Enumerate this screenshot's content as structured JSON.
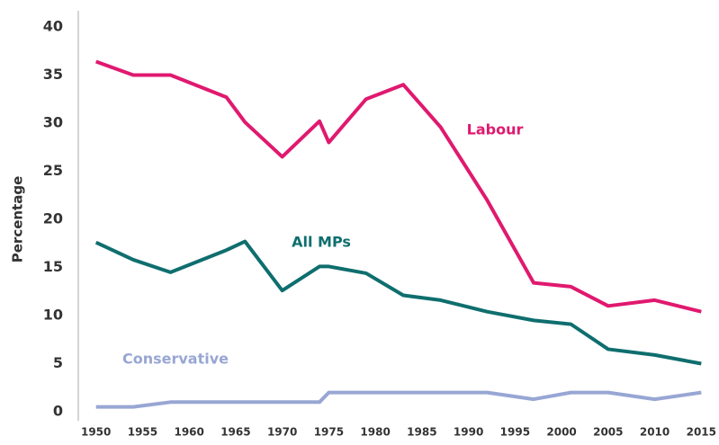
{
  "chart_data": {
    "type": "line",
    "y_label": "Percentage",
    "x": [
      1950,
      1954,
      1958,
      1964,
      1966,
      1970,
      1974,
      1975,
      1979,
      1983,
      1987,
      1992,
      1997,
      2001,
      2005,
      2010,
      2015
    ],
    "series": [
      {
        "name": "Labour",
        "color": "#e0196f",
        "values": [
          36.4,
          35,
          35,
          32.7,
          30.1,
          26.5,
          30.2,
          28.0,
          32.5,
          34.0,
          29.6,
          22.0,
          13.4,
          13.0,
          11.0,
          11.6,
          10.4
        ]
      },
      {
        "name": "All MPs",
        "color": "#0f6e6e",
        "values": [
          17.6,
          15.8,
          14.5,
          16.8,
          17.7,
          12.6,
          15.1,
          15.1,
          14.4,
          12.1,
          11.6,
          10.4,
          9.5,
          9.1,
          6.5,
          5.9,
          5.0
        ]
      },
      {
        "name": "Conservative",
        "color": "#98a6d4",
        "values": [
          0.5,
          0.5,
          1.0,
          1.0,
          1.0,
          1.0,
          1.0,
          2.0,
          2.0,
          2.0,
          2.0,
          2.0,
          1.3,
          2.0,
          2.0,
          1.3,
          2.0
        ]
      }
    ],
    "xlim": [
      1948,
      2017
    ],
    "ylim": [
      0,
      40
    ],
    "xticks": [
      1950,
      1955,
      1960,
      1965,
      1970,
      1975,
      1980,
      1985,
      1990,
      1995,
      2000,
      2005,
      2010,
      2015
    ],
    "yticks": [
      0,
      5,
      10,
      15,
      20,
      25,
      30,
      35,
      40
    ],
    "grid": false
  }
}
